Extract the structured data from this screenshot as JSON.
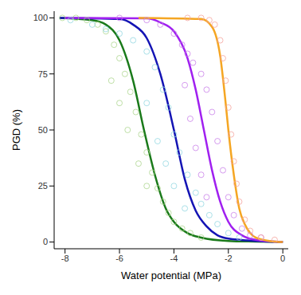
{
  "chart_data": {
    "type": "scatter",
    "x_label": "Water potential (MPa)",
    "y_label": "PGD (%)",
    "xlim": [
      -8.4,
      0.2
    ],
    "xticks": [
      -8,
      -6,
      -4,
      -2,
      0
    ],
    "ylim": [
      -3,
      103
    ],
    "yticks": [
      0,
      25,
      50,
      75,
      100
    ],
    "grid": false,
    "series": [
      {
        "type": "scatter",
        "color": "#a9d48a",
        "marker": "circle_open",
        "x": [
          -8.1,
          -7.6,
          -7.2,
          -6.8,
          -6.5,
          -6.2,
          -6.0,
          -5.8,
          -5.6,
          -5.4,
          -5.2,
          -5.0,
          -4.8,
          -4.6,
          -4.4,
          -4.2,
          -4.0,
          -3.7,
          -3.4,
          -3.0,
          -6.3,
          -6.0,
          -5.7,
          -5.3,
          -5.0
        ],
        "values": [
          100,
          100,
          99,
          97,
          94,
          88,
          82,
          75,
          67,
          58,
          48,
          40,
          31,
          24,
          18,
          13,
          9,
          6,
          4,
          2,
          72,
          62,
          50,
          35,
          25
        ]
      },
      {
        "type": "scatter",
        "color": "#8fd6e0",
        "marker": "circle_open",
        "x": [
          -7.8,
          -7.0,
          -6.5,
          -6.0,
          -5.5,
          -5.0,
          -4.7,
          -4.4,
          -4.2,
          -4.0,
          -3.8,
          -3.5,
          -3.2,
          -3.0,
          -2.7,
          -2.4,
          -2.0,
          -1.6,
          -5.0,
          -4.6,
          -4.3,
          -4.0,
          -3.6
        ],
        "values": [
          99,
          97,
          95,
          93,
          90,
          85,
          78,
          68,
          60,
          48,
          40,
          30,
          22,
          17,
          12,
          8,
          4,
          2,
          62,
          45,
          35,
          25,
          15
        ]
      },
      {
        "type": "scatter",
        "color": "#c77be8",
        "marker": "circle_open",
        "x": [
          -6.0,
          -5.0,
          -4.5,
          -4.0,
          -3.7,
          -3.5,
          -3.3,
          -3.0,
          -2.8,
          -2.6,
          -2.4,
          -2.2,
          -2.0,
          -1.8,
          -1.5,
          -1.2,
          -0.8,
          -3.6,
          -3.4,
          -3.2,
          -3.0,
          -2.8
        ],
        "values": [
          100,
          99,
          97,
          93,
          88,
          84,
          80,
          75,
          68,
          58,
          45,
          32,
          20,
          12,
          6,
          3,
          2,
          70,
          55,
          42,
          30,
          20
        ]
      },
      {
        "type": "scatter",
        "color": "#f4a09a",
        "marker": "circle_open",
        "x": [
          -3.5,
          -3.0,
          -2.7,
          -2.5,
          -2.3,
          -2.2,
          -2.1,
          -2.0,
          -1.9,
          -1.8,
          -1.7,
          -1.6,
          -1.4,
          -1.2,
          -0.8,
          -0.3
        ],
        "values": [
          100,
          100,
          99,
          97,
          90,
          82,
          72,
          60,
          48,
          36,
          26,
          18,
          10,
          5,
          2,
          1
        ]
      },
      {
        "type": "line",
        "color": "#1a7a1a",
        "x": [
          -8.2,
          -7.0,
          -6.5,
          -6.0,
          -5.5,
          -5.1,
          -4.7,
          -4.3,
          -4.0,
          -3.5,
          -3.0,
          -2.0,
          -1.0,
          0.0
        ],
        "values": [
          100,
          99,
          97,
          90,
          72,
          50,
          30,
          15,
          9,
          4,
          2,
          0.5,
          0.2,
          0
        ]
      },
      {
        "type": "line",
        "color": "#1414b4",
        "x": [
          -8.2,
          -6.0,
          -5.5,
          -5.0,
          -4.5,
          -4.0,
          -3.6,
          -3.2,
          -2.8,
          -2.4,
          -2.0,
          -1.0,
          0.0
        ],
        "values": [
          100,
          99.5,
          97,
          91,
          75,
          50,
          28,
          14,
          7,
          3,
          1.5,
          0.5,
          0
        ]
      },
      {
        "type": "line",
        "color": "#a020f0",
        "x": [
          -8.0,
          -5.0,
          -4.5,
          -4.0,
          -3.5,
          -3.2,
          -2.9,
          -2.6,
          -2.3,
          -2.0,
          -1.5,
          -1.0,
          0.0
        ],
        "values": [
          100,
          99.8,
          98,
          94,
          82,
          68,
          50,
          32,
          18,
          9,
          3,
          1,
          0
        ]
      },
      {
        "type": "line",
        "color": "#f5a623",
        "x": [
          -5.3,
          -3.0,
          -2.6,
          -2.3,
          -2.1,
          -2.0,
          -1.8,
          -1.6,
          -1.4,
          -1.2,
          -1.0,
          -0.5,
          0.0
        ],
        "values": [
          100,
          99.5,
          96,
          83,
          62,
          50,
          30,
          15,
          8,
          4,
          2,
          0.5,
          0
        ]
      }
    ]
  }
}
